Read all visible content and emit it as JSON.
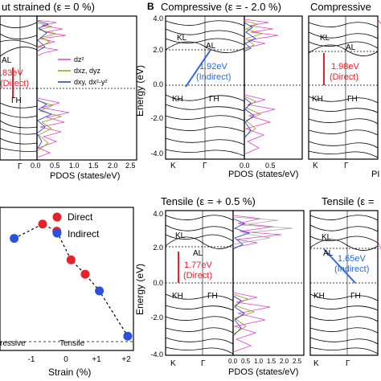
{
  "panel_b_letter": "B",
  "panels": {
    "unstrained": {
      "title": "ut strained (ε =  0 %)",
      "point_labels": [
        "AL",
        "ΓH"
      ],
      "gap_value": ".83eV",
      "gap_type": "(Direct)",
      "kpoint_label": "Γ",
      "pdos_label": "PDOS (states/eV)",
      "pdos_ticks": [
        "0.0",
        "0.5",
        "1.0",
        "1.5",
        "2.0",
        "2.5"
      ]
    },
    "compressive_2": {
      "title": "Compressive (ε = - 2.0 %)",
      "ylabel": "Energy (eV)",
      "yticks": [
        "4.0",
        "2.0",
        "0.0",
        "-2.0",
        "-4.0"
      ],
      "point_labels": [
        "KL",
        "AL",
        "KH",
        "ΓH"
      ],
      "gap_value": "1.92eV",
      "gap_type": "(Indirect)",
      "kpoints": [
        "K",
        "Γ"
      ],
      "pdos_label": "PDOS (states/eV)",
      "pdos_ticks": [
        "0.0",
        "0.5"
      ]
    },
    "compressive_partial": {
      "title": "Compressive",
      "point_labels": [
        "KL",
        "AL",
        "KH",
        "ΓH"
      ],
      "gap_value": "1.98eV",
      "gap_type": "(Direct)",
      "kpoints": [
        "K",
        "Γ"
      ],
      "pdos_label": "PI"
    },
    "tensile_05": {
      "title": "Tensile (ε = + 0.5 %)",
      "ylabel": "Energy (eV)",
      "yticks": [
        "4.0",
        "2.0",
        "0.0",
        "-2.0",
        "-4.0"
      ],
      "point_labels": [
        "KL",
        "AL",
        "KH",
        "ΓH"
      ],
      "gap_value": "1.77eV",
      "gap_type": "(Direct)",
      "kpoints": [
        "K",
        "Γ"
      ],
      "pdos_label": "PDOS (states/eV)",
      "pdos_ticks": [
        "0.0",
        "0.5",
        "1.0",
        "1.5",
        "2.0",
        "2.5"
      ]
    },
    "tensile_partial": {
      "title": "Tensile (ε =",
      "point_labels": [
        "KL",
        "AL",
        "KH",
        "ΓH"
      ],
      "gap_value": "1.65eV",
      "gap_type": "(Indirect)",
      "kpoints": [
        "K",
        "Γ"
      ]
    }
  },
  "pdos_legend": [
    "dz²",
    "dxz, dyz",
    "dxy, dx²-y²"
  ],
  "colors": {
    "dz2": "#e040c8",
    "dxz_dyz": "#9a9a1a",
    "dxy": "#1a3cc8",
    "direct_marker": "#e8202a",
    "indirect_marker": "#2a50e0",
    "direct_gap": "#e8202a",
    "indirect_gap": "#2a6adf"
  },
  "strain_plot": {
    "legend": [
      "Direct",
      "Indirect"
    ],
    "xlabel": "Strain (%)",
    "xticks": [
      "-1",
      "0",
      "+1",
      "+2"
    ],
    "region_left": "ressive",
    "region_right": "Tensile"
  },
  "chart_data": {
    "type": "scatter",
    "xlabel": "Strain (%)",
    "series": [
      {
        "name": "Direct",
        "x": [
          -1.0,
          -0.5,
          0.0,
          0.5
        ],
        "y": [
          1.98,
          1.95,
          1.83,
          1.77
        ]
      },
      {
        "name": "Indirect",
        "x": [
          -2.0,
          1.0,
          2.0
        ],
        "y": [
          1.92,
          1.7,
          1.51
        ]
      }
    ],
    "fit_line": {
      "x": [
        -2.0,
        -1.0,
        -0.5,
        0.0,
        0.5,
        1.0,
        2.0
      ],
      "y": [
        1.92,
        1.98,
        1.95,
        1.83,
        1.77,
        1.7,
        1.51
      ]
    },
    "xlim": [
      -2.5,
      2.2
    ],
    "ylim": [
      1.45,
      2.05
    ]
  }
}
